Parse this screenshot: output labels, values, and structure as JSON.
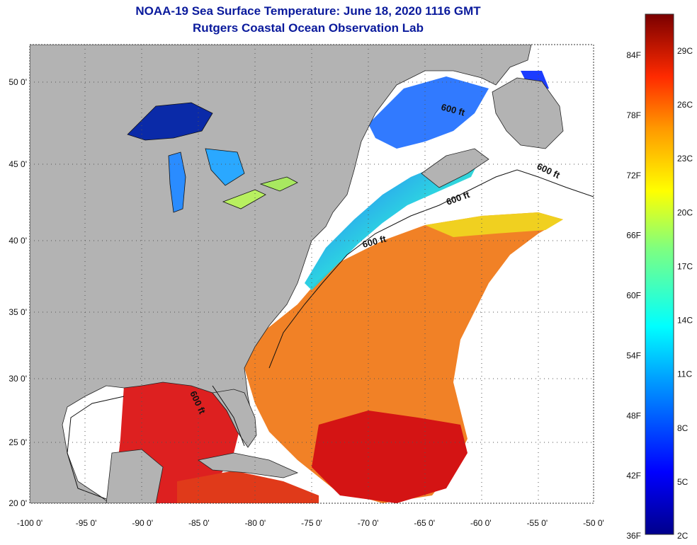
{
  "header": {
    "title": "NOAA-19 Sea Surface Temperature:  June 18, 2020 1116 GMT",
    "subtitle": "Rutgers Coastal Ocean Observation Lab"
  },
  "axes": {
    "x_ticks": [
      "-100 0'",
      "-95 0'",
      "-90 0'",
      "-85 0'",
      "-80 0'",
      "-75 0'",
      "-70 0'",
      "-65 0'",
      "-60 0'",
      "-55 0'",
      "-50 0'"
    ],
    "y_ticks": [
      "50 0'",
      "45 0'",
      "40 0'",
      "35 0'",
      "30 0'",
      "25 0'",
      "20 0'"
    ]
  },
  "depth_contour_label": "600 ft",
  "colorbar": {
    "fahrenheit_labels": [
      "84F",
      "78F",
      "72F",
      "66F",
      "60F",
      "54F",
      "48F",
      "42F",
      "36F"
    ],
    "celsius_labels": [
      "29C",
      "26C",
      "23C",
      "20C",
      "17C",
      "14C",
      "11C",
      "8C",
      "5C",
      "2C"
    ]
  },
  "colors": {
    "land": "#b3b3b3",
    "title": "#0a1a9c",
    "cold": "#00008b",
    "warm": "#8b0000"
  }
}
